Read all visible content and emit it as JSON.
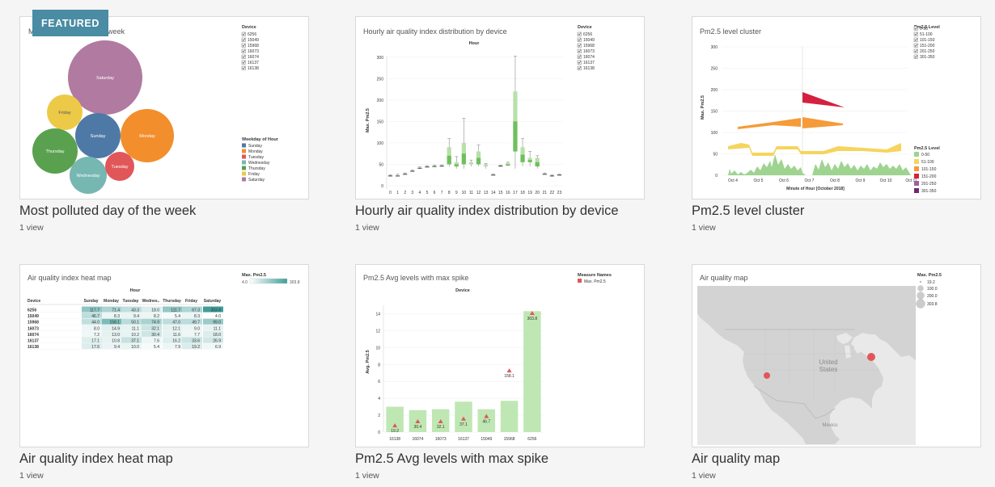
{
  "badge": "FEATURED",
  "cards": [
    {
      "title": "Most polluted day of the week",
      "views": "1 view",
      "inner_title": "Most polluted day of the week",
      "filter_title": "Device",
      "devices": [
        "6256",
        "15049",
        "15968",
        "16073",
        "16074",
        "16137",
        "16138"
      ],
      "legend_title": "Weekday of Hour",
      "weekdays": [
        "Sunday",
        "Monday",
        "Tuesday",
        "Wednesday",
        "Thursday",
        "Friday",
        "Saturday"
      ],
      "colors": {
        "Sunday": "#4e79a7",
        "Monday": "#f28e2b",
        "Tuesday": "#e15759",
        "Wednesday": "#76b7b2",
        "Thursday": "#59a14f",
        "Friday": "#edc948",
        "Saturday": "#b07aa1"
      }
    },
    {
      "title": "Hourly air quality index distribution by device",
      "views": "1 view",
      "inner_title": "Hourly air quality index distribution by device",
      "col_header": "Hour",
      "ylabel": "Max. Pm2.5",
      "yticks": [
        "300",
        "250",
        "200",
        "150",
        "100",
        "50",
        "0"
      ],
      "xticks": [
        "0",
        "1",
        "2",
        "3",
        "4",
        "5",
        "6",
        "7",
        "8",
        "9",
        "10",
        "11",
        "12",
        "13",
        "14",
        "15",
        "16",
        "17",
        "18",
        "19",
        "20",
        "21",
        "22",
        "23"
      ],
      "filter_title": "Device",
      "devices": [
        "6256",
        "15049",
        "15968",
        "16073",
        "16074",
        "16137",
        "16138"
      ]
    },
    {
      "title": "Pm2.5 level cluster",
      "views": "1 view",
      "inner_title": "Pm2.5 level cluster",
      "ylabel": "Max. Pm2.5",
      "yticks": [
        "300",
        "250",
        "200",
        "150",
        "100",
        "50",
        "0"
      ],
      "xticks": [
        "Oct 4",
        "Oct 5",
        "Oct 6",
        "Oct 7",
        "Oct 8",
        "Oct 9",
        "Oct 10",
        "Oct 11"
      ],
      "xlabel": "Minute of Hour [October 2018]",
      "filter_title": "Pm2.5 Level",
      "levels": [
        "0-50",
        "51-100",
        "101-150",
        "151-200",
        "201-250",
        "301-350"
      ],
      "legend_title": "Pm2.5 Level",
      "legend_levels": [
        "0-50",
        "51-100",
        "101-150",
        "151-200",
        "201-250",
        "301-350"
      ],
      "level_colors": [
        "#9ed490",
        "#f6d45d",
        "#f59b3a",
        "#d4213f",
        "#a05fa0",
        "#6b2c6e"
      ]
    },
    {
      "title": "Air quality index heat map",
      "views": "1 view",
      "inner_title": "Air quality index heat map",
      "legend_title": "Max. Pm2.5",
      "legend_min": "4.0",
      "legend_max": "303.8",
      "col_header": "Hour",
      "row_header": "Device",
      "columns": [
        "Sunday",
        "Monday",
        "Tuesday",
        "Wednes..",
        "Thursday",
        "Friday",
        "Saturday"
      ],
      "rows": [
        {
          "device": "6256",
          "values": [
            "117.7",
            "71.4",
            "43.3",
            "18.0",
            "111.7",
            "67.3",
            "303.8"
          ]
        },
        {
          "device": "15049",
          "values": [
            "46.7",
            "8.3",
            "9.4",
            "8.2",
            "5.4",
            "8.3",
            "4.0"
          ]
        },
        {
          "device": "15968",
          "values": [
            "44.0",
            "158.1",
            "50.1",
            "74.9",
            "47.0",
            "49.7",
            "99.0"
          ]
        },
        {
          "device": "16073",
          "values": [
            "8.0",
            "14.9",
            "11.1",
            "32.1",
            "12.1",
            "9.0",
            "11.1"
          ]
        },
        {
          "device": "16074",
          "values": [
            "7.2",
            "13.0",
            "10.2",
            "30.4",
            "11.6",
            "7.7",
            "18.0"
          ]
        },
        {
          "device": "16137",
          "values": [
            "17.1",
            "10.8",
            "37.1",
            "7.6",
            "16.2",
            "33.6",
            "26.9"
          ]
        },
        {
          "device": "16138",
          "values": [
            "17.6",
            "9.4",
            "10.0",
            "5.4",
            "7.9",
            "19.2",
            "6.9"
          ]
        }
      ]
    },
    {
      "title": "Pm2.5 Avg levels with max spike",
      "views": "1 view",
      "inner_title": "Pm2.5 Avg levels with max spike",
      "col_header": "Device",
      "ylabel": "Avg. Pm2.5",
      "yticks": [
        "14",
        "12",
        "10",
        "8",
        "6",
        "4",
        "2",
        "0"
      ],
      "legend_title": "Measure Names",
      "legend_item": "Max. Pm2.5",
      "categories": [
        "16138",
        "16074",
        "16073",
        "16137",
        "15049",
        "15968",
        "6256"
      ],
      "avg_values": [
        3.0,
        2.6,
        2.7,
        3.6,
        2.7,
        3.7,
        14.3
      ],
      "max_labels": [
        "19.2",
        "30.4",
        "32.1",
        "37.1",
        "46.7",
        "158.1",
        "303.8"
      ],
      "marker_y": [
        0.7,
        1.2,
        1.2,
        1.5,
        1.8,
        7.2,
        14.0
      ]
    },
    {
      "title": "Air quality map",
      "views": "1 view",
      "inner_title": "Air quality map",
      "legend_title": "Max. Pm2.5",
      "legend_values": [
        "19.2",
        "100.0",
        "200.0",
        "303.8"
      ],
      "country_label_1": "United",
      "country_label_2": "States",
      "mexico_label": "Mexico"
    }
  ]
}
